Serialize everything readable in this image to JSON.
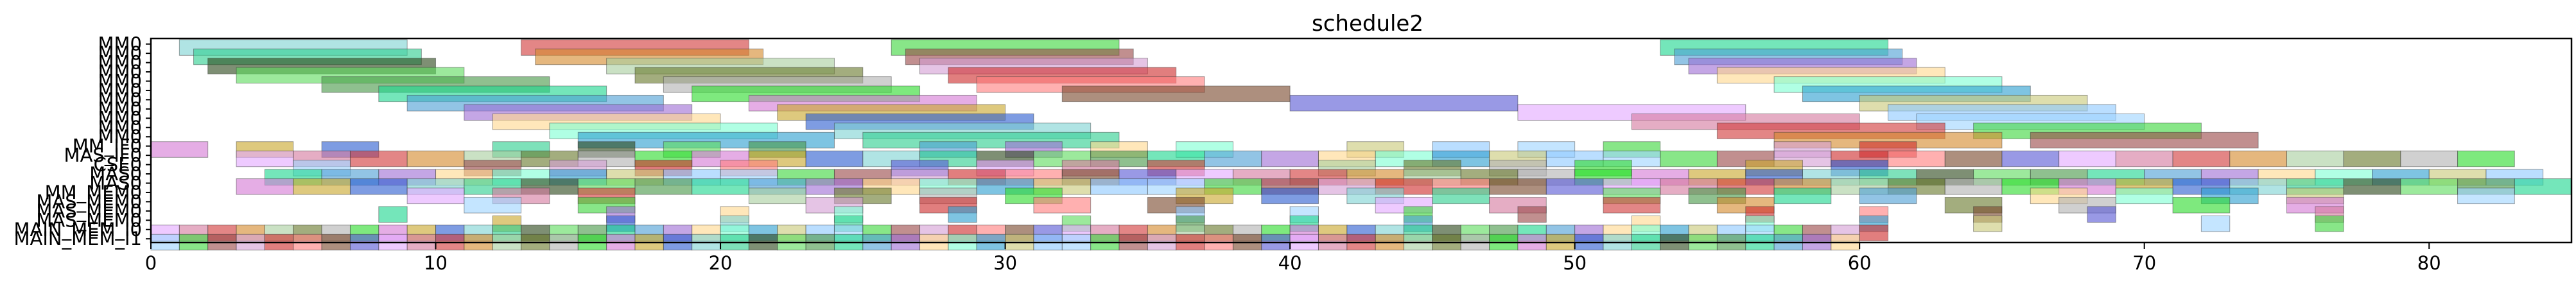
{
  "chart_data": {
    "type": "gantt",
    "title": "schedule2",
    "xlabel": "",
    "ylabel": "",
    "xlim": [
      0,
      85
    ],
    "x_ticks": [
      0,
      10,
      20,
      30,
      40,
      50,
      60,
      70,
      80
    ],
    "grid": false,
    "legend": "none",
    "rows": [
      "MM0",
      "MM0",
      "MM0",
      "MM0",
      "MM0",
      "MM0",
      "MM0",
      "MM0",
      "MM0",
      "MM0",
      "MM0",
      "MM_IF0",
      "MAS_IF0",
      "CSE0",
      "MAS0",
      "MAS0",
      "MM_MEM0",
      "MAS_MEM0",
      "MAS_MEM0",
      "MAS_MEM0",
      "MAIN_MEM_I0",
      "MAIN_MEM_I1"
    ],
    "palette": [
      "#7fd3d3",
      "#d23b3b",
      "#3fd63f",
      "#1fd68f",
      "#2fdc2f",
      "#7a4a2f",
      "#2f9fd0",
      "#2fcf8f",
      "#d58a2f",
      "#9b4a4a",
      "#4f9fd5",
      "#d57ad5",
      "#5b5bd5",
      "#c9c97a",
      "#2f4a1f",
      "#a9cf9f",
      "#d59fd5",
      "#9f6fd5",
      "#c9a82f",
      "#e3a9ff",
      "#8fc9ff",
      "#5fdc5f",
      "#6b7a2f",
      "#cf2f2f",
      "#ffd88f",
      "#2f5fd0",
      "#d57a9f",
      "#9fd5ff",
      "#4a9a4a",
      "#b3b3b3",
      "#ff7f7f",
      "#7fffd4"
    ],
    "segments": [
      {
        "row": 0,
        "start": 1,
        "end": 9
      },
      {
        "row": 0,
        "start": 13,
        "end": 21
      },
      {
        "row": 0,
        "start": 26,
        "end": 34
      },
      {
        "row": 0,
        "start": 53,
        "end": 61
      },
      {
        "row": 1,
        "start": 1.5,
        "end": 9.5
      },
      {
        "row": 1,
        "start": 13.5,
        "end": 21.5
      },
      {
        "row": 1,
        "start": 26.5,
        "end": 34.5
      },
      {
        "row": 1,
        "start": 53.5,
        "end": 61.5
      },
      {
        "row": 2,
        "start": 2,
        "end": 10
      },
      {
        "row": 2,
        "start": 16,
        "end": 24
      },
      {
        "row": 2,
        "start": 27,
        "end": 35
      },
      {
        "row": 2,
        "start": 54,
        "end": 62
      },
      {
        "row": 3,
        "start": 3,
        "end": 11
      },
      {
        "row": 3,
        "start": 17,
        "end": 25
      },
      {
        "row": 3,
        "start": 28,
        "end": 36
      },
      {
        "row": 3,
        "start": 55,
        "end": 63
      },
      {
        "row": 4,
        "start": 6,
        "end": 14
      },
      {
        "row": 4,
        "start": 18,
        "end": 26
      },
      {
        "row": 4,
        "start": 29,
        "end": 37
      },
      {
        "row": 4,
        "start": 57,
        "end": 65
      },
      {
        "row": 5,
        "start": 8,
        "end": 16
      },
      {
        "row": 5,
        "start": 19,
        "end": 27
      },
      {
        "row": 5,
        "start": 32,
        "end": 40
      },
      {
        "row": 5,
        "start": 58,
        "end": 66
      },
      {
        "row": 6,
        "start": 9,
        "end": 18
      },
      {
        "row": 6,
        "start": 21,
        "end": 29
      },
      {
        "row": 6,
        "start": 40,
        "end": 48
      },
      {
        "row": 6,
        "start": 60,
        "end": 68
      },
      {
        "row": 7,
        "start": 11,
        "end": 19
      },
      {
        "row": 7,
        "start": 22,
        "end": 30
      },
      {
        "row": 7,
        "start": 48,
        "end": 56
      },
      {
        "row": 7,
        "start": 61,
        "end": 69
      },
      {
        "row": 8,
        "start": 12,
        "end": 20
      },
      {
        "row": 8,
        "start": 23,
        "end": 31
      },
      {
        "row": 8,
        "start": 52,
        "end": 60
      },
      {
        "row": 8,
        "start": 62,
        "end": 70
      },
      {
        "row": 9,
        "start": 14,
        "end": 22
      },
      {
        "row": 9,
        "start": 24,
        "end": 33
      },
      {
        "row": 9,
        "start": 55,
        "end": 63
      },
      {
        "row": 9,
        "start": 64,
        "end": 72
      },
      {
        "row": 10,
        "start": 15,
        "end": 24
      },
      {
        "row": 10,
        "start": 25,
        "end": 34
      },
      {
        "row": 10,
        "start": 57,
        "end": 65
      },
      {
        "row": 10,
        "start": 66,
        "end": 74
      }
    ],
    "dense_rows": [
      {
        "row": 11,
        "start": 0,
        "end": 62,
        "cell": 2,
        "gap": 1,
        "offset": 0
      },
      {
        "row": 12,
        "start": 3,
        "end": 84,
        "cell": 2,
        "gap": 0,
        "offset": 1
      },
      {
        "row": 13,
        "start": 5,
        "end": 61,
        "cell": 2,
        "gap": 1,
        "offset": 2
      },
      {
        "row": 14,
        "start": 4,
        "end": 84,
        "cell": 2,
        "gap": 0,
        "offset": 3
      },
      {
        "row": 15,
        "start": 3,
        "end": 85,
        "cell": 2,
        "gap": 0,
        "offset": 4
      },
      {
        "row": 16,
        "start": 9,
        "end": 84,
        "cell": 2,
        "gap": 1,
        "offset": 5
      },
      {
        "row": 17,
        "start": 11,
        "end": 84,
        "cell": 2,
        "gap": 2,
        "offset": 6
      },
      {
        "row": 18,
        "start": 8,
        "end": 80,
        "cell": 1,
        "gap": 3,
        "offset": 7
      },
      {
        "row": 19,
        "start": 8,
        "end": 80,
        "cell": 1,
        "gap": 3,
        "offset": 8
      },
      {
        "row": 20,
        "start": 0,
        "end": 61,
        "cell": 1,
        "gap": 0,
        "offset": 9
      },
      {
        "row": 21,
        "start": 0,
        "end": 60,
        "cell": 1,
        "gap": 0,
        "offset": 10
      }
    ]
  }
}
